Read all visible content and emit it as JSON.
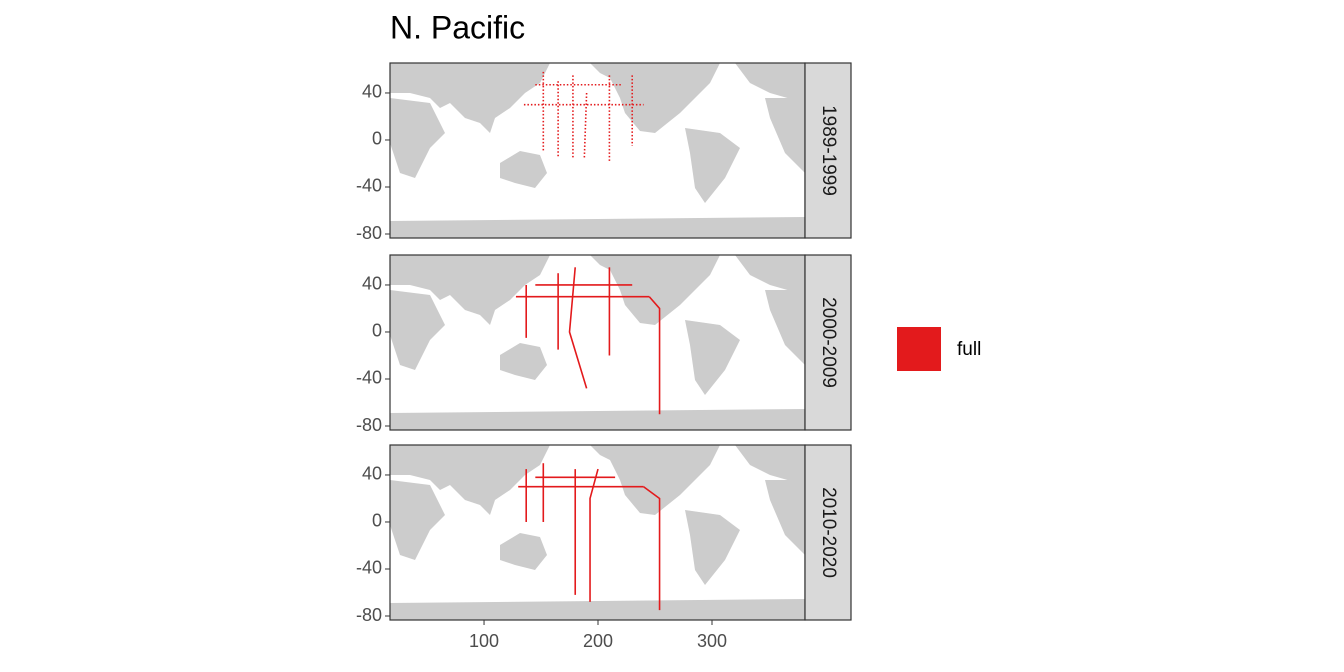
{
  "chart_data": {
    "type": "map",
    "title": "N. Pacific",
    "xlim": [
      17.5,
      381.6
    ],
    "ylim": [
      -83.4,
      65.5
    ],
    "xticks": [
      100,
      200,
      300
    ],
    "yticks": [
      40,
      0,
      -40,
      -80
    ],
    "series": [
      {
        "name": "full",
        "color": "#e31a1c"
      }
    ],
    "facets": [
      {
        "label": "1989-1999",
        "tracks": [
          {
            "x": [
              152,
              152
            ],
            "y": [
              58,
              -10
            ]
          },
          {
            "x": [
              165,
              165
            ],
            "y": [
              50,
              -15
            ]
          },
          {
            "x": [
              178,
              178
            ],
            "y": [
              55,
              -15
            ]
          },
          {
            "x": [
              190,
              188
            ],
            "y": [
              40,
              -15
            ]
          },
          {
            "x": [
              210,
              210
            ],
            "y": [
              55,
              -18
            ]
          },
          {
            "x": [
              230,
              230
            ],
            "y": [
              55,
              -5
            ]
          },
          {
            "x": [
              135,
              240
            ],
            "y": [
              30,
              30
            ]
          },
          {
            "x": [
              145,
              220
            ],
            "y": [
              47,
              47
            ]
          }
        ]
      },
      {
        "label": "2000-2009",
        "tracks": [
          {
            "x": [
              128,
              245
            ],
            "y": [
              30,
              30
            ]
          },
          {
            "x": [
              145,
              230
            ],
            "y": [
              40,
              40
            ]
          },
          {
            "x": [
              137,
              137
            ],
            "y": [
              40,
              -5
            ]
          },
          {
            "x": [
              165,
              165
            ],
            "y": [
              50,
              -15
            ]
          },
          {
            "x": [
              180,
              175,
              190
            ],
            "y": [
              55,
              0,
              -48
            ]
          },
          {
            "x": [
              210,
              210
            ],
            "y": [
              55,
              -20
            ]
          },
          {
            "x": [
              245,
              254,
              254
            ],
            "y": [
              30,
              20,
              -70
            ]
          }
        ]
      },
      {
        "label": "2010-2020",
        "tracks": [
          {
            "x": [
              130,
              240
            ],
            "y": [
              30,
              30
            ]
          },
          {
            "x": [
              145,
              215
            ],
            "y": [
              38,
              38
            ]
          },
          {
            "x": [
              137,
              137
            ],
            "y": [
              45,
              0
            ]
          },
          {
            "x": [
              152,
              152
            ],
            "y": [
              50,
              0
            ]
          },
          {
            "x": [
              180,
              180
            ],
            "y": [
              45,
              -62
            ]
          },
          {
            "x": [
              200,
              193,
              193
            ],
            "y": [
              45,
              20,
              -68
            ]
          },
          {
            "x": [
              240,
              254,
              254
            ],
            "y": [
              30,
              20,
              -75
            ]
          }
        ]
      }
    ]
  }
}
